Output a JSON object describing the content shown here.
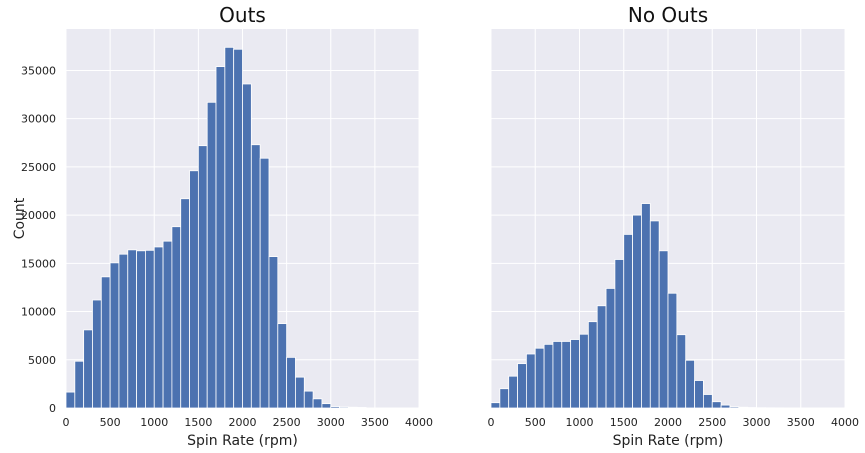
{
  "chart_data": [
    {
      "type": "bar",
      "title": "Outs",
      "xlabel": "Spin Rate (rpm)",
      "ylabel": "Count",
      "xlim": [
        0,
        4000
      ],
      "ylim": [
        0,
        39300
      ],
      "xticks": [
        0,
        500,
        1000,
        1500,
        2000,
        2500,
        3000,
        3500,
        4000
      ],
      "yticks": [
        0,
        5000,
        10000,
        15000,
        20000,
        25000,
        30000,
        35000
      ],
      "show_ytick_labels": true,
      "bin_width": 100,
      "bin_starts": [
        0,
        100,
        200,
        300,
        400,
        500,
        600,
        700,
        800,
        900,
        1000,
        1100,
        1200,
        1300,
        1400,
        1500,
        1600,
        1700,
        1800,
        1900,
        2000,
        2100,
        2200,
        2300,
        2400,
        2500,
        2600,
        2700,
        2800,
        2900,
        3000,
        3100,
        3200,
        3300
      ],
      "values": [
        1650,
        4850,
        8100,
        11200,
        13600,
        15050,
        15950,
        16400,
        16300,
        16350,
        16700,
        17300,
        18800,
        21700,
        24600,
        27200,
        31700,
        35400,
        37400,
        37200,
        33600,
        27300,
        25900,
        15700,
        8750,
        5250,
        3200,
        1750,
        950,
        450,
        150,
        100,
        80,
        60
      ]
    },
    {
      "type": "bar",
      "title": "No Outs",
      "xlabel": "Spin Rate (rpm)",
      "ylabel": "",
      "xlim": [
        0,
        4000
      ],
      "ylim": [
        0,
        39300
      ],
      "xticks": [
        0,
        500,
        1000,
        1500,
        2000,
        2500,
        3000,
        3500,
        4000
      ],
      "yticks": [
        0,
        5000,
        10000,
        15000,
        20000,
        25000,
        30000,
        35000
      ],
      "show_ytick_labels": false,
      "bin_width": 100,
      "bin_starts": [
        0,
        100,
        200,
        300,
        400,
        500,
        600,
        700,
        800,
        900,
        1000,
        1100,
        1200,
        1300,
        1400,
        1500,
        1600,
        1700,
        1800,
        1900,
        2000,
        2100,
        2200,
        2300,
        2400,
        2500,
        2600,
        2700,
        2800,
        2900,
        3000,
        3100,
        3200,
        3300
      ],
      "values": [
        550,
        2000,
        3300,
        4600,
        5600,
        6200,
        6600,
        6900,
        6900,
        7100,
        7650,
        8950,
        10600,
        12400,
        15400,
        18000,
        20000,
        21200,
        19400,
        16300,
        11900,
        7600,
        4950,
        2850,
        1400,
        650,
        300,
        120,
        80,
        50,
        30,
        20,
        15,
        10
      ]
    }
  ],
  "style": {
    "panel_bg": "#eaeaf2",
    "grid_color": "#ffffff",
    "bar_color": "#4c72b0"
  }
}
